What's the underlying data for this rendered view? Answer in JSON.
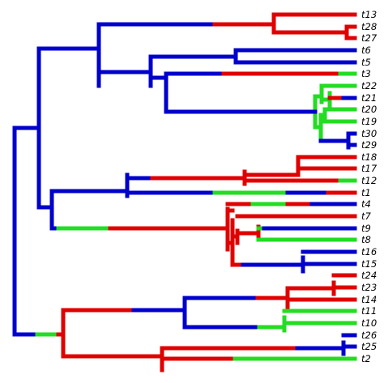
{
  "colors": {
    "red": "#e00000",
    "blue": "#0000cc",
    "green": "#22dd22"
  },
  "tips": [
    "t13",
    "t28",
    "t27",
    "t6",
    "t5",
    "t3",
    "t22",
    "t21",
    "t20",
    "t19",
    "t30",
    "t29",
    "t18",
    "t17",
    "t12",
    "t1",
    "t4",
    "t7",
    "t9",
    "t8",
    "t16",
    "t15",
    "t24",
    "t23",
    "t14",
    "t11",
    "t10",
    "t26",
    "t25",
    "t2"
  ]
}
